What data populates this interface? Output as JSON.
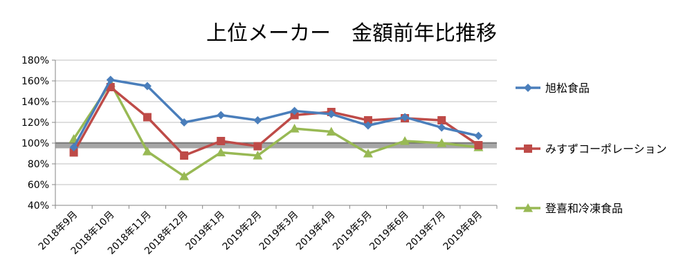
{
  "chart_data": {
    "type": "line",
    "title": "上位メーカー　金額前年比推移",
    "xlabel": "",
    "ylabel": "",
    "categories": [
      "2018年9月",
      "2018年10月",
      "2018年11月",
      "2018年12月",
      "2019年1月",
      "2019年2月",
      "2019年3月",
      "2019年4月",
      "2019年5月",
      "2019年6月",
      "2019年7月",
      "2019年8月"
    ],
    "ylim": [
      40,
      180
    ],
    "yticks": [
      "40%",
      "60%",
      "80%",
      "100%",
      "120%",
      "140%",
      "160%",
      "180%"
    ],
    "grid": true,
    "reference_band": [
      95,
      101
    ],
    "legend_position": "right",
    "series": [
      {
        "name": "旭松食品",
        "color": "#4A7EBB",
        "marker": "diamond",
        "values": [
          96,
          161,
          155,
          120,
          127,
          122,
          131,
          128,
          117,
          125,
          115,
          107
        ]
      },
      {
        "name": "みすずコーポレーション",
        "color": "#BE4B48",
        "marker": "square",
        "values": [
          91,
          154,
          125,
          88,
          102,
          97,
          127,
          130,
          122,
          124,
          122,
          98
        ]
      },
      {
        "name": "登喜和冷凍食品",
        "color": "#98B954",
        "marker": "triangle",
        "values": [
          104,
          158,
          92,
          68,
          91,
          88,
          114,
          111,
          90,
          102,
          100,
          96
        ]
      }
    ]
  }
}
